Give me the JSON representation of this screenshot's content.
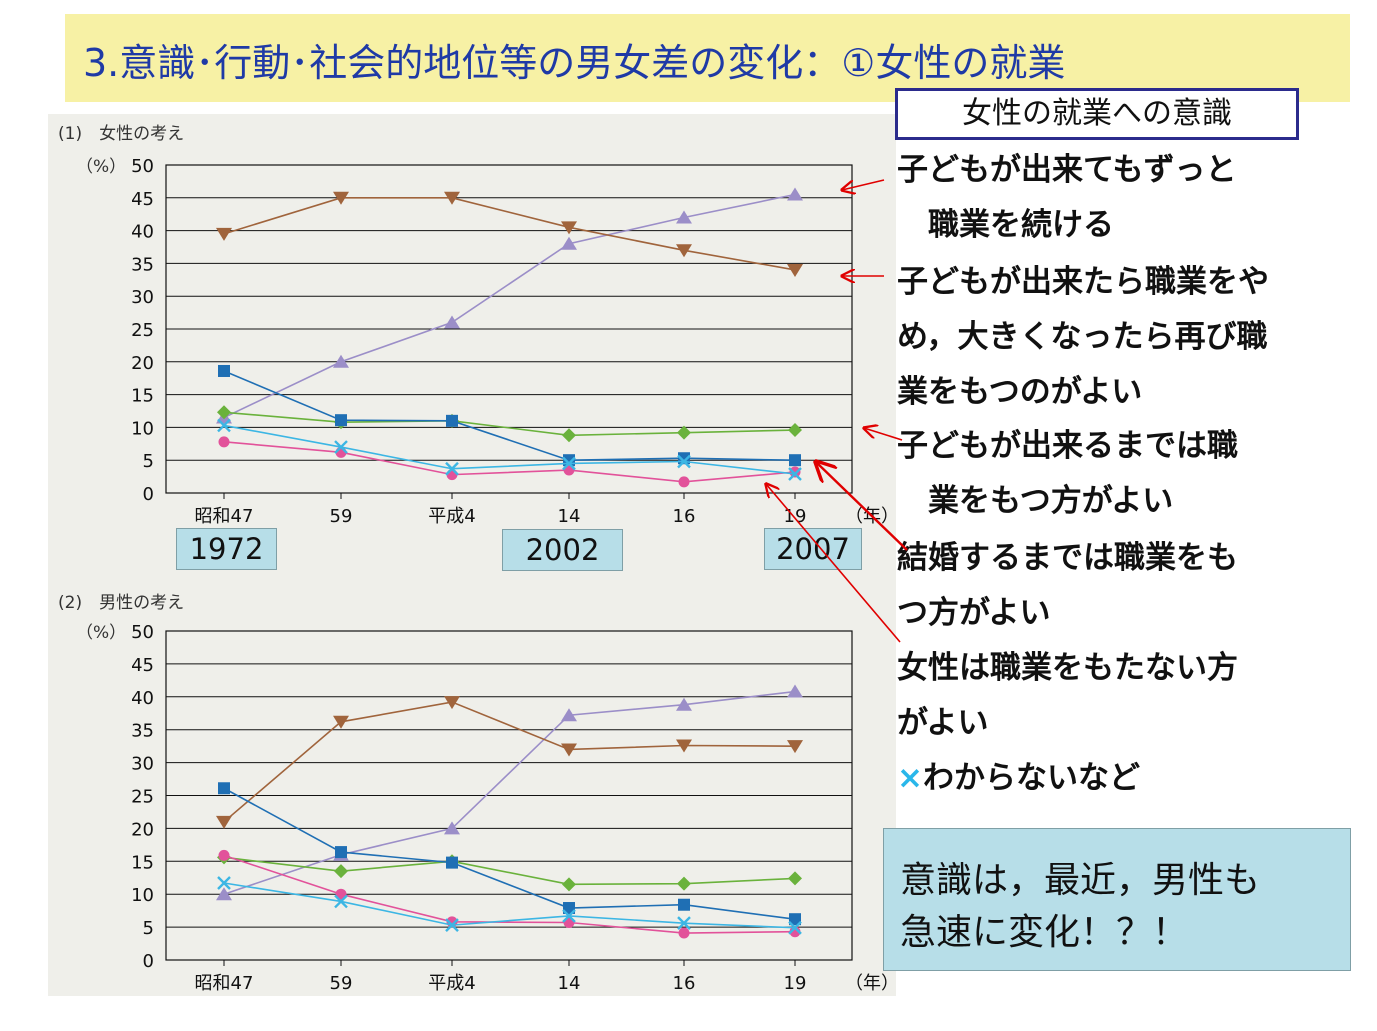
{
  "title": "3.意識･行動･社会的地位等の男女差の変化：①女性の就業",
  "legend": {
    "title": "女性の就業への意識",
    "items": [
      {
        "lines": [
          "子どもが出来てもずっと",
          "　職業を続ける"
        ],
        "color": "#9b8ec8"
      },
      {
        "lines": [
          "子どもが出来たら職業をや",
          " め，大きくなったら再び職",
          " 業をもつのがよい"
        ],
        "color": "#a0643c"
      },
      {
        "lines": [
          "子どもが出来るまでは職",
          "　業をもつ方がよい"
        ],
        "color": "#6ab23c"
      },
      {
        "lines": [
          "結婚するまでは職業をも",
          " つ方がよい"
        ],
        "color": "#1f6fb4"
      },
      {
        "lines": [
          "女性は職業をもたない方",
          " がよい"
        ],
        "color": "#e2529a"
      },
      {
        "mark": "×",
        "lines": [
          "わからないなど"
        ],
        "color": "#3cb6e4"
      }
    ]
  },
  "year_boxes": [
    "1972",
    "2002",
    "2007"
  ],
  "comment": [
    "意識は，最近，男性も",
    "急速に変化！？！"
  ],
  "chart_data": [
    {
      "type": "line",
      "title": "(1)　女性の考え",
      "ylabel": "（%）",
      "xlabel": "（年）",
      "categories": [
        "昭和47",
        "59",
        "平成4",
        "14",
        "16",
        "19"
      ],
      "ylim": [
        0,
        50
      ],
      "yticks": [
        0,
        5,
        10,
        15,
        20,
        25,
        30,
        35,
        40,
        45,
        50
      ],
      "grid": true,
      "series": [
        {
          "key": "keep_working",
          "color": "#9b8ec8",
          "marker": "triangle-up",
          "values": [
            11.5,
            20,
            26,
            38,
            42,
            45.5
          ]
        },
        {
          "key": "quit_return",
          "color": "#a0643c",
          "marker": "triangle-down",
          "values": [
            39.5,
            45,
            45,
            40.5,
            37,
            34
          ]
        },
        {
          "key": "until_child",
          "color": "#6ab23c",
          "marker": "diamond",
          "values": [
            12.3,
            10.8,
            11,
            8.8,
            9.2,
            9.6
          ]
        },
        {
          "key": "until_marriage",
          "color": "#1f6fb4",
          "marker": "square",
          "values": [
            18.6,
            11.1,
            11,
            5,
            5.3,
            5
          ]
        },
        {
          "key": "no_job",
          "color": "#e2529a",
          "marker": "circle",
          "values": [
            7.8,
            6.2,
            2.8,
            3.5,
            1.7,
            3.2
          ]
        },
        {
          "key": "dont_know",
          "color": "#3cb6e4",
          "marker": "x",
          "values": [
            10.3,
            7,
            3.7,
            4.5,
            4.8,
            2.9
          ]
        }
      ]
    },
    {
      "type": "line",
      "title": "(2)　男性の考え",
      "ylabel": "（%）",
      "xlabel": "（年）",
      "categories": [
        "昭和47",
        "59",
        "平成4",
        "14",
        "16",
        "19"
      ],
      "ylim": [
        0,
        50
      ],
      "yticks": [
        0,
        5,
        10,
        15,
        20,
        25,
        30,
        35,
        40,
        45,
        50
      ],
      "grid": true,
      "series": [
        {
          "key": "keep_working",
          "color": "#9b8ec8",
          "marker": "triangle-up",
          "values": [
            10,
            16,
            20,
            37.2,
            38.8,
            40.8
          ]
        },
        {
          "key": "quit_return",
          "color": "#a0643c",
          "marker": "triangle-down",
          "values": [
            21,
            36.2,
            39.2,
            32,
            32.6,
            32.5
          ]
        },
        {
          "key": "until_child",
          "color": "#6ab23c",
          "marker": "diamond",
          "values": [
            15.6,
            13.5,
            15,
            11.5,
            11.6,
            12.4
          ]
        },
        {
          "key": "until_marriage",
          "color": "#1f6fb4",
          "marker": "square",
          "values": [
            26.1,
            16.4,
            14.8,
            7.9,
            8.4,
            6.2
          ]
        },
        {
          "key": "no_job",
          "color": "#e2529a",
          "marker": "circle",
          "values": [
            15.9,
            10,
            5.8,
            5.7,
            4.1,
            4.3
          ]
        },
        {
          "key": "dont_know",
          "color": "#3cb6e4",
          "marker": "x",
          "values": [
            11.7,
            8.9,
            5.3,
            6.7,
            5.6,
            4.9
          ]
        }
      ]
    }
  ]
}
